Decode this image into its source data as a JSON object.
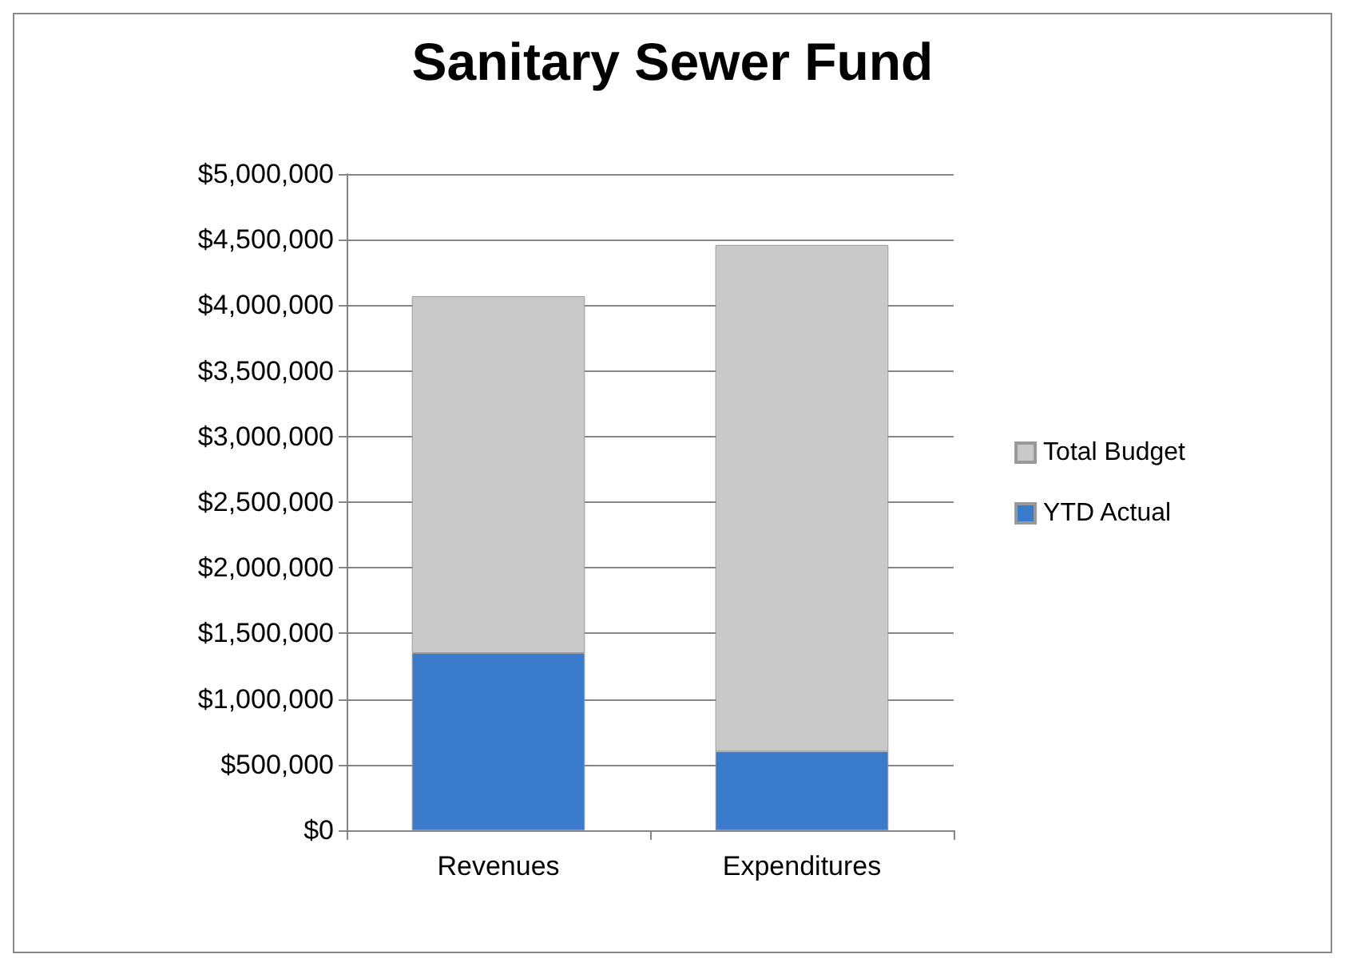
{
  "chart_data": {
    "type": "bar",
    "title": "Sanitary Sewer Fund",
    "categories": [
      "Revenues",
      "Expenditures"
    ],
    "stacked": true,
    "series": [
      {
        "name": "YTD Actual",
        "color": "#3b7bcc",
        "values": [
          1350000,
          600000
        ]
      },
      {
        "name": "Total Budget",
        "color": "#c9c9c9",
        "values": [
          2720000,
          3860000
        ]
      }
    ],
    "ylim": [
      0,
      5000000
    ],
    "yticks": [
      {
        "value": 0,
        "label": "$0"
      },
      {
        "value": 500000,
        "label": "$500,000"
      },
      {
        "value": 1000000,
        "label": "$1,000,000"
      },
      {
        "value": 1500000,
        "label": "$1,500,000"
      },
      {
        "value": 2000000,
        "label": "$2,000,000"
      },
      {
        "value": 2500000,
        "label": "$2,500,000"
      },
      {
        "value": 3000000,
        "label": "$3,000,000"
      },
      {
        "value": 3500000,
        "label": "$3,500,000"
      },
      {
        "value": 4000000,
        "label": "$4,000,000"
      },
      {
        "value": 4500000,
        "label": "$4,500,000"
      },
      {
        "value": 5000000,
        "label": "$5,000,000"
      }
    ],
    "grid": "y",
    "legend": "right"
  }
}
